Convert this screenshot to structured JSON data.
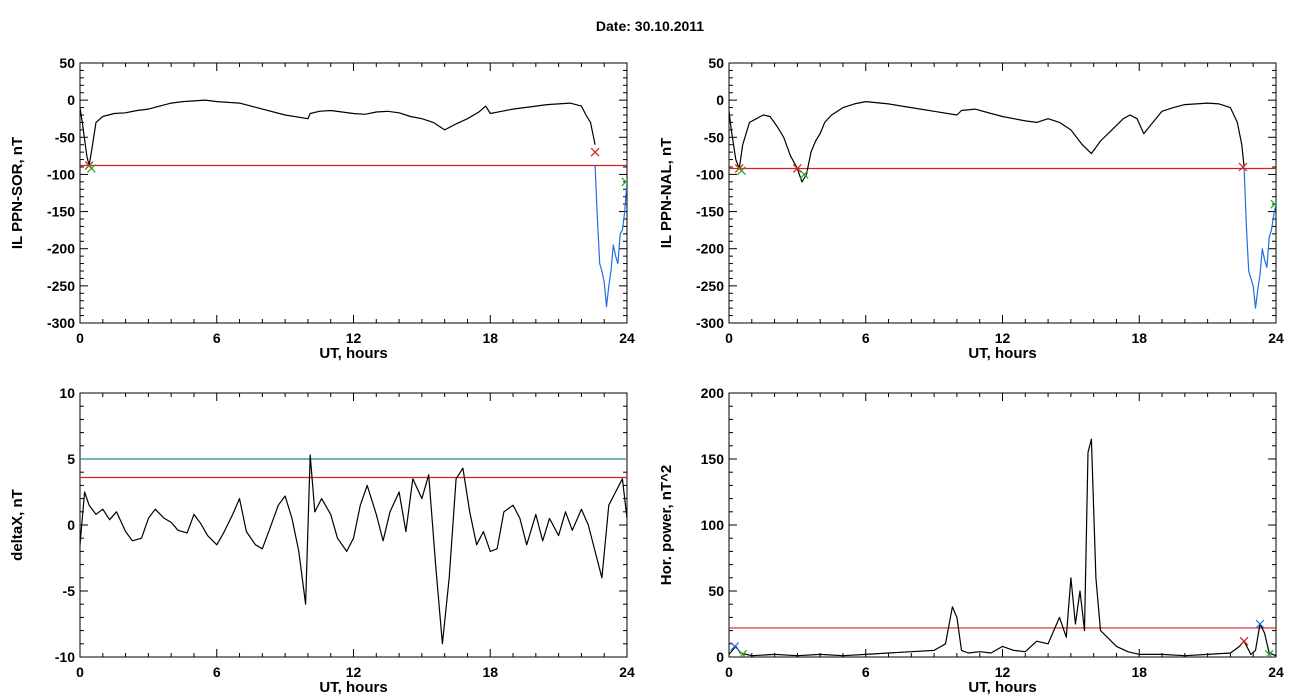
{
  "header": {
    "date_text": "Date:  30.10.2011"
  },
  "chart_data": [
    {
      "type": "line",
      "id": "p1",
      "xlabel": "UT, hours",
      "ylabel": "IL PPN-SOR, nT",
      "xlim": [
        0,
        24
      ],
      "ylim": [
        -300,
        50
      ],
      "xticks": [
        0,
        6,
        12,
        18,
        24
      ],
      "yticks": [
        50,
        0,
        -50,
        -100,
        -150,
        -200,
        -250,
        -300
      ],
      "hlines": [
        {
          "y": -88,
          "color": "#d62020"
        }
      ],
      "series": [
        {
          "color": "#000000",
          "x": [
            0,
            0.1,
            0.3,
            0.4,
            0.5,
            0.7,
            1.0,
            1.5,
            2,
            2.5,
            3,
            3.5,
            4,
            4.5,
            5,
            5.5,
            6,
            7,
            8,
            9,
            10,
            10.1,
            10.5,
            11,
            11.5,
            12,
            12.5,
            13,
            13.5,
            14,
            14.5,
            15,
            15.5,
            16,
            16.5,
            17,
            17.5,
            17.8,
            18,
            18.5,
            19,
            19.5,
            20,
            20.5,
            21,
            21.5,
            22,
            22.2,
            22.4,
            22.6
          ],
          "y": [
            -10,
            -30,
            -75,
            -88,
            -70,
            -30,
            -22,
            -18,
            -17,
            -14,
            -12,
            -8,
            -4,
            -2,
            -1,
            0,
            -2,
            -4,
            -12,
            -20,
            -25,
            -18,
            -15,
            -14,
            -16,
            -18,
            -19,
            -16,
            -15,
            -17,
            -22,
            -25,
            -30,
            -40,
            -32,
            -25,
            -16,
            -8,
            -18,
            -15,
            -12,
            -10,
            -8,
            -6,
            -5,
            -4,
            -8,
            -20,
            -30,
            -60
          ]
        },
        {
          "color": "#1f6fe0",
          "x": [
            22.6,
            22.7,
            22.8,
            22.9,
            23.0,
            23.1,
            23.2,
            23.3,
            23.4,
            23.5,
            23.6,
            23.7,
            23.8,
            23.9,
            24
          ],
          "y": [
            -88,
            -160,
            -220,
            -230,
            -245,
            -278,
            -250,
            -230,
            -195,
            -210,
            -220,
            -180,
            -175,
            -150,
            -110
          ]
        }
      ],
      "markers": [
        {
          "x": 0.4,
          "y": -88,
          "color": "#d62020"
        },
        {
          "x": 0.5,
          "y": -92,
          "color": "#22aa22"
        },
        {
          "x": 22.6,
          "y": -70,
          "color": "#d62020"
        },
        {
          "x": 23.95,
          "y": -110,
          "color": "#22aa22"
        }
      ]
    },
    {
      "type": "line",
      "id": "p2",
      "xlabel": "UT, hours",
      "ylabel": "IL PPN-NAL, nT",
      "xlim": [
        0,
        24
      ],
      "ylim": [
        -300,
        50
      ],
      "xticks": [
        0,
        6,
        12,
        18,
        24
      ],
      "yticks": [
        50,
        0,
        -50,
        -100,
        -150,
        -200,
        -250,
        -300
      ],
      "hlines": [
        {
          "y": -92,
          "color": "#d62020"
        }
      ],
      "series": [
        {
          "color": "#000000",
          "x": [
            0,
            0.1,
            0.3,
            0.45,
            0.6,
            0.9,
            1.2,
            1.5,
            1.8,
            2.1,
            2.4,
            2.7,
            3.0,
            3.2,
            3.4,
            3.6,
            3.8,
            4.0,
            4.2,
            4.5,
            5,
            5.5,
            6,
            7,
            8,
            9,
            10,
            10.2,
            10.8,
            11.5,
            12,
            12.5,
            13,
            13.5,
            14,
            14.5,
            15,
            15.5,
            15.9,
            16.3,
            16.8,
            17.3,
            17.6,
            17.9,
            18.2,
            18.6,
            19,
            19.5,
            20,
            20.5,
            21,
            21.5,
            22,
            22.3,
            22.5,
            22.6
          ],
          "y": [
            -15,
            -40,
            -80,
            -92,
            -60,
            -30,
            -25,
            -20,
            -22,
            -35,
            -50,
            -75,
            -92,
            -110,
            -100,
            -70,
            -55,
            -45,
            -30,
            -20,
            -10,
            -5,
            -2,
            -5,
            -10,
            -15,
            -20,
            -14,
            -12,
            -18,
            -22,
            -25,
            -28,
            -30,
            -25,
            -30,
            -40,
            -60,
            -72,
            -55,
            -40,
            -25,
            -20,
            -25,
            -45,
            -30,
            -15,
            -10,
            -6,
            -5,
            -4,
            -5,
            -10,
            -30,
            -60,
            -90
          ]
        },
        {
          "color": "#1f6fe0",
          "x": [
            22.6,
            22.7,
            22.8,
            22.9,
            23.0,
            23.1,
            23.2,
            23.3,
            23.4,
            23.5,
            23.6,
            23.7,
            23.8,
            23.9,
            24
          ],
          "y": [
            -92,
            -170,
            -230,
            -240,
            -250,
            -280,
            -255,
            -235,
            -200,
            -215,
            -225,
            -185,
            -175,
            -155,
            -140
          ]
        }
      ],
      "markers": [
        {
          "x": 0.45,
          "y": -92,
          "color": "#d62020"
        },
        {
          "x": 0.55,
          "y": -95,
          "color": "#22aa22"
        },
        {
          "x": 3.0,
          "y": -92,
          "color": "#d62020"
        },
        {
          "x": 3.3,
          "y": -100,
          "color": "#22aa22"
        },
        {
          "x": 22.55,
          "y": -90,
          "color": "#d62020"
        },
        {
          "x": 23.95,
          "y": -140,
          "color": "#22aa22"
        }
      ]
    },
    {
      "type": "line",
      "id": "p3",
      "xlabel": "UT, hours",
      "ylabel": "deltaX, nT",
      "xlim": [
        0,
        24
      ],
      "ylim": [
        -10,
        10
      ],
      "xticks": [
        0,
        6,
        12,
        18,
        24
      ],
      "yticks": [
        10,
        5,
        0,
        -5,
        -10
      ],
      "hlines": [
        {
          "y": 5,
          "color": "#1a8a8a"
        },
        {
          "y": 3.6,
          "color": "#d62020"
        }
      ],
      "series": [
        {
          "color": "#000000",
          "x": [
            0,
            0.2,
            0.4,
            0.7,
            1.0,
            1.3,
            1.6,
            2.0,
            2.3,
            2.7,
            3.0,
            3.3,
            3.7,
            4.0,
            4.3,
            4.7,
            5.0,
            5.3,
            5.6,
            6.0,
            6.3,
            6.7,
            7.0,
            7.3,
            7.7,
            8.0,
            8.3,
            8.7,
            9.0,
            9.3,
            9.6,
            9.9,
            10.1,
            10.3,
            10.6,
            11.0,
            11.3,
            11.7,
            12.0,
            12.3,
            12.6,
            13.0,
            13.3,
            13.6,
            14.0,
            14.3,
            14.6,
            15.0,
            15.3,
            15.6,
            15.9,
            16.2,
            16.5,
            16.8,
            17.1,
            17.4,
            17.7,
            18.0,
            18.3,
            18.6,
            19.0,
            19.3,
            19.6,
            20.0,
            20.3,
            20.6,
            21.0,
            21.3,
            21.6,
            22.0,
            22.3,
            22.6,
            22.9,
            23.2,
            23.5,
            23.8,
            24
          ],
          "y": [
            -1.5,
            2.5,
            1.5,
            0.8,
            1.2,
            0.4,
            1.0,
            -0.5,
            -1.2,
            -1.0,
            0.5,
            1.2,
            0.5,
            0.2,
            -0.4,
            -0.6,
            0.8,
            0.1,
            -0.8,
            -1.5,
            -0.6,
            0.8,
            2.0,
            -0.5,
            -1.5,
            -1.8,
            -0.4,
            1.5,
            2.2,
            0.5,
            -2.0,
            -6.0,
            5.3,
            1.0,
            2.0,
            0.8,
            -1.0,
            -2.0,
            -1.0,
            1.5,
            3.0,
            0.8,
            -1.2,
            1.0,
            2.5,
            -0.5,
            3.5,
            2.0,
            3.8,
            -3.0,
            -9.0,
            -4.0,
            3.5,
            4.3,
            1.0,
            -1.5,
            -0.5,
            -2.0,
            -1.8,
            1.0,
            1.5,
            0.5,
            -1.5,
            0.8,
            -1.2,
            0.5,
            -0.8,
            1.0,
            -0.4,
            1.2,
            0.0,
            -2.0,
            -4.0,
            1.5,
            2.5,
            3.5,
            0.5
          ]
        }
      ],
      "markers": []
    },
    {
      "type": "line",
      "id": "p4",
      "xlabel": "UT, hours",
      "ylabel": "Hor. power, nT^2",
      "xlim": [
        0,
        24
      ],
      "ylim": [
        0,
        200
      ],
      "xticks": [
        0,
        6,
        12,
        18,
        24
      ],
      "yticks": [
        200,
        150,
        100,
        50,
        0
      ],
      "hlines": [
        {
          "y": 22,
          "color": "#d62020"
        }
      ],
      "series": [
        {
          "color": "#000000",
          "x": [
            0,
            0.3,
            0.5,
            1,
            2,
            3,
            4,
            5,
            6,
            7,
            8,
            9,
            9.5,
            9.8,
            10.0,
            10.2,
            10.5,
            11,
            11.5,
            12.0,
            12.5,
            13,
            13.5,
            14,
            14.5,
            14.8,
            15.0,
            15.2,
            15.4,
            15.6,
            15.75,
            15.9,
            16.1,
            16.3,
            16.6,
            17.0,
            17.5,
            18,
            19,
            20,
            21,
            22,
            22.4,
            22.6,
            22.9,
            23.1,
            23.3,
            23.5,
            23.7,
            24
          ],
          "y": [
            2,
            8,
            3,
            1,
            2,
            1,
            2,
            1,
            2,
            3,
            4,
            5,
            10,
            38,
            30,
            5,
            3,
            4,
            3,
            8,
            5,
            4,
            12,
            10,
            30,
            15,
            60,
            25,
            50,
            20,
            155,
            165,
            60,
            20,
            15,
            8,
            4,
            2,
            2,
            1,
            2,
            3,
            8,
            12,
            2,
            5,
            25,
            18,
            3,
            1
          ]
        }
      ],
      "markers": [
        {
          "x": 0.25,
          "y": 8,
          "color": "#1f6fe0"
        },
        {
          "x": 0.6,
          "y": 2,
          "color": "#22aa22"
        },
        {
          "x": 22.6,
          "y": 12,
          "color": "#d62020"
        },
        {
          "x": 23.3,
          "y": 25,
          "color": "#1f6fe0"
        },
        {
          "x": 23.7,
          "y": 2,
          "color": "#22aa22"
        }
      ]
    }
  ]
}
